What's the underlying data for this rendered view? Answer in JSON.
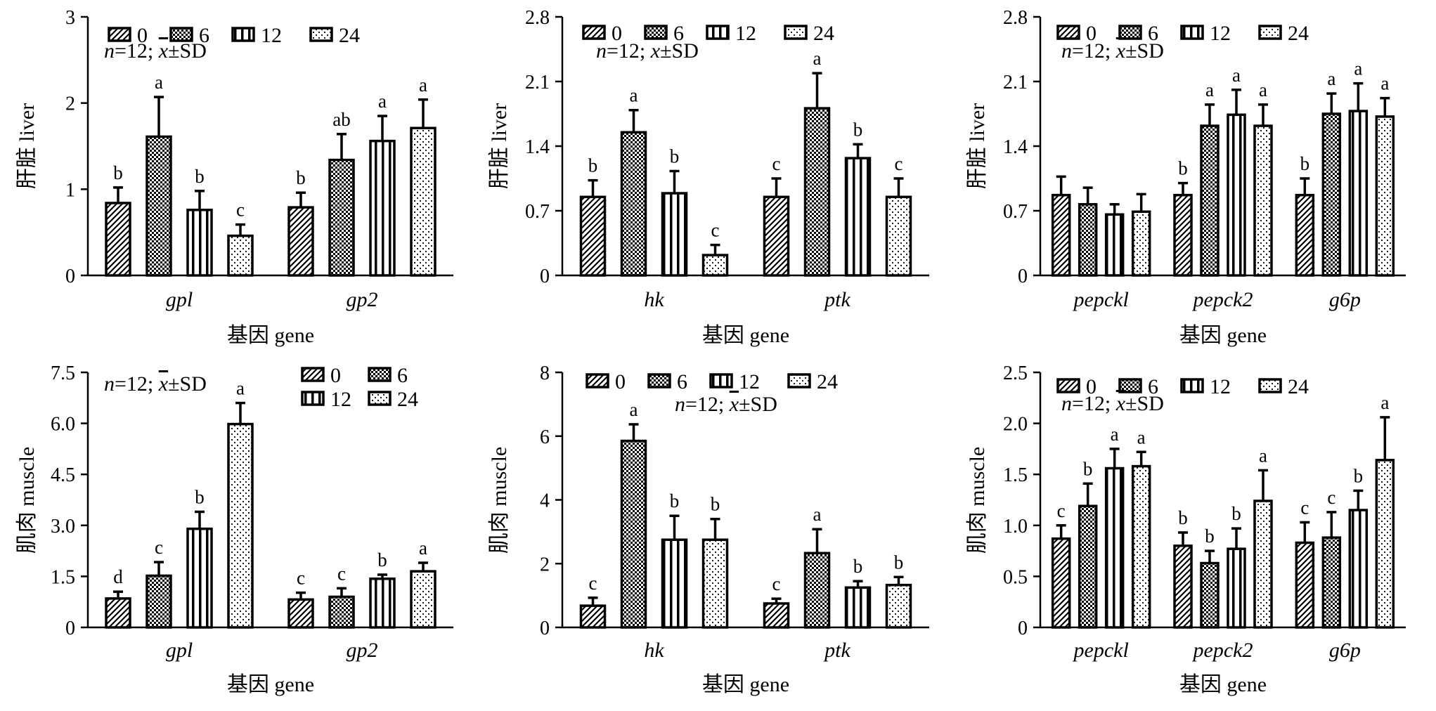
{
  "series_names": [
    "0",
    "6",
    "12",
    "24"
  ],
  "note_prefix": "n",
  "note_suffix": "=12; ",
  "note_mean": "x",
  "note_sd": "±SD",
  "chart_data": [
    {
      "type": "bar",
      "ylabel": "肝脏 liver",
      "xlabel": "基因 gene",
      "categories": [
        "gpl",
        "gp2"
      ],
      "ylim": [
        0,
        3
      ],
      "yticks": [
        "0",
        "1",
        "2",
        "3"
      ],
      "legend_placement": "top-left-row",
      "note_placement": "top-left",
      "series": [
        {
          "name": "0",
          "values": [
            0.84,
            0.79
          ],
          "errors": [
            0.18,
            0.17
          ],
          "labels": [
            "b",
            "b"
          ]
        },
        {
          "name": "6",
          "values": [
            1.61,
            1.34
          ],
          "errors": [
            0.46,
            0.3
          ],
          "labels": [
            "a",
            "ab"
          ]
        },
        {
          "name": "12",
          "values": [
            0.76,
            1.56
          ],
          "errors": [
            0.22,
            0.29
          ],
          "labels": [
            "b",
            "a"
          ]
        },
        {
          "name": "24",
          "values": [
            0.46,
            1.71
          ],
          "errors": [
            0.13,
            0.33
          ],
          "labels": [
            "c",
            "a"
          ]
        }
      ]
    },
    {
      "type": "bar",
      "ylabel": "肝脏 liver",
      "xlabel": "基因 gene",
      "categories": [
        "hk",
        "ptk"
      ],
      "ylim": [
        0,
        2.8
      ],
      "yticks": [
        "0",
        "0.7",
        "1.4",
        "2.1",
        "2.8"
      ],
      "legend_placement": "top-left-row",
      "note_placement": "top-left",
      "series": [
        {
          "name": "0",
          "values": [
            0.85,
            0.85
          ],
          "errors": [
            0.18,
            0.2
          ],
          "labels": [
            "b",
            "c"
          ]
        },
        {
          "name": "6",
          "values": [
            1.55,
            1.81
          ],
          "errors": [
            0.24,
            0.38
          ],
          "labels": [
            "a",
            "a"
          ]
        },
        {
          "name": "12",
          "values": [
            0.89,
            1.27
          ],
          "errors": [
            0.24,
            0.15
          ],
          "labels": [
            "b",
            "b"
          ]
        },
        {
          "name": "24",
          "values": [
            0.22,
            0.85
          ],
          "errors": [
            0.11,
            0.2
          ],
          "labels": [
            "c",
            "c"
          ]
        }
      ]
    },
    {
      "type": "bar",
      "ylabel": "肝脏 liver",
      "xlabel": "基因 gene",
      "categories": [
        "pepckl",
        "pepck2",
        "g6p"
      ],
      "ylim": [
        0,
        2.8
      ],
      "yticks": [
        "0",
        "0.7",
        "1.4",
        "2.1",
        "2.8"
      ],
      "legend_placement": "top-left-row",
      "note_placement": "top-left",
      "series": [
        {
          "name": "0",
          "values": [
            0.87,
            0.87,
            0.87
          ],
          "errors": [
            0.2,
            0.13,
            0.18
          ],
          "labels": [
            "",
            "b",
            "b"
          ]
        },
        {
          "name": "6",
          "values": [
            0.77,
            1.62,
            1.75
          ],
          "errors": [
            0.18,
            0.23,
            0.22
          ],
          "labels": [
            "",
            "a",
            "a"
          ]
        },
        {
          "name": "12",
          "values": [
            0.66,
            1.74,
            1.78
          ],
          "errors": [
            0.11,
            0.27,
            0.3
          ],
          "labels": [
            "",
            "a",
            "a"
          ]
        },
        {
          "name": "24",
          "values": [
            0.69,
            1.62,
            1.72
          ],
          "errors": [
            0.19,
            0.23,
            0.2
          ],
          "labels": [
            "",
            "a",
            "a"
          ]
        }
      ]
    },
    {
      "type": "bar",
      "ylabel": "肌肉 muscle",
      "xlabel": "基因 gene",
      "categories": [
        "gpl",
        "gp2"
      ],
      "ylim": [
        0,
        7.5
      ],
      "yticks": [
        "0",
        "1.5",
        "3.0",
        "4.5",
        "6.0",
        "7.5"
      ],
      "legend_placement": "top-right-grid",
      "note_placement": "top-left",
      "series": [
        {
          "name": "0",
          "values": [
            0.85,
            0.82
          ],
          "errors": [
            0.2,
            0.2
          ],
          "labels": [
            "d",
            "c"
          ]
        },
        {
          "name": "6",
          "values": [
            1.52,
            0.9
          ],
          "errors": [
            0.4,
            0.25
          ],
          "labels": [
            "c",
            "c"
          ]
        },
        {
          "name": "12",
          "values": [
            2.9,
            1.43
          ],
          "errors": [
            0.5,
            0.12
          ],
          "labels": [
            "b",
            "b"
          ]
        },
        {
          "name": "24",
          "values": [
            5.98,
            1.65
          ],
          "errors": [
            0.62,
            0.25
          ],
          "labels": [
            "a",
            "a"
          ]
        }
      ]
    },
    {
      "type": "bar",
      "ylabel": "肌肉 muscle",
      "xlabel": "基因 gene",
      "categories": [
        "hk",
        "ptk"
      ],
      "ylim": [
        0,
        8
      ],
      "yticks": [
        "0",
        "2",
        "4",
        "6",
        "8"
      ],
      "legend_placement": "top-left-row",
      "note_placement": "top-center",
      "series": [
        {
          "name": "0",
          "values": [
            0.68,
            0.75
          ],
          "errors": [
            0.25,
            0.15
          ],
          "labels": [
            "c",
            "c"
          ]
        },
        {
          "name": "6",
          "values": [
            5.85,
            2.33
          ],
          "errors": [
            0.52,
            0.75
          ],
          "labels": [
            "a",
            "a"
          ]
        },
        {
          "name": "12",
          "values": [
            2.75,
            1.25
          ],
          "errors": [
            0.75,
            0.2
          ],
          "labels": [
            "b",
            "b"
          ]
        },
        {
          "name": "24",
          "values": [
            2.75,
            1.33
          ],
          "errors": [
            0.65,
            0.25
          ],
          "labels": [
            "b",
            "b"
          ]
        }
      ]
    },
    {
      "type": "bar",
      "ylabel": "肌肉 muscle",
      "xlabel": "基因 gene",
      "categories": [
        "pepckl",
        "pepck2",
        "g6p"
      ],
      "ylim": [
        0,
        2.5
      ],
      "yticks": [
        "0",
        "0.5",
        "1.0",
        "1.5",
        "2.0",
        "2.5"
      ],
      "legend_placement": "top-left-row",
      "note_placement": "top-left",
      "series": [
        {
          "name": "0",
          "values": [
            0.87,
            0.8,
            0.83
          ],
          "errors": [
            0.13,
            0.13,
            0.2
          ],
          "labels": [
            "c",
            "b",
            "c"
          ]
        },
        {
          "name": "6",
          "values": [
            1.19,
            0.63,
            0.88
          ],
          "errors": [
            0.22,
            0.12,
            0.25
          ],
          "labels": [
            "b",
            "b",
            "c"
          ]
        },
        {
          "name": "12",
          "values": [
            1.56,
            0.77,
            1.15
          ],
          "errors": [
            0.19,
            0.2,
            0.19
          ],
          "labels": [
            "a",
            "b",
            "b"
          ]
        },
        {
          "name": "24",
          "values": [
            1.58,
            1.24,
            1.64
          ],
          "errors": [
            0.14,
            0.3,
            0.42
          ],
          "labels": [
            "a",
            "a",
            "a"
          ]
        }
      ]
    }
  ]
}
